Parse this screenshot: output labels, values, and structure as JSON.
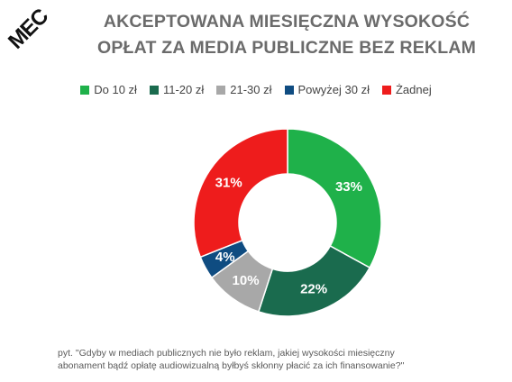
{
  "logo": {
    "text": "MEC"
  },
  "chart_data": {
    "type": "pie",
    "title": [
      "AKCEPTOWANA MIESIĘCZNA WYSOKOŚĆ",
      "OPŁAT ZA MEDIA PUBLICZNE BEZ REKLAM"
    ],
    "categories": [
      "Do 10 zł",
      "11-20 zł",
      "21-30 zł",
      "Powyżej 30 zł",
      "Żadnej"
    ],
    "values": [
      33,
      22,
      10,
      4,
      31
    ],
    "labels": [
      "33%",
      "22%",
      "10%",
      "4%",
      "31%"
    ],
    "colors": [
      "#1fb14a",
      "#1a6b4e",
      "#a8a8a8",
      "#0f4c81",
      "#ee1c1c"
    ],
    "donut": true,
    "legend_position": "top"
  },
  "footnote": [
    "pyt. \"Gdyby w mediach publicznych nie było reklam, jakiej wysokości miesięczny",
    "abonament bądź opłatę audiowizualną byłbyś skłonny płacić za ich finansowanie?\""
  ]
}
